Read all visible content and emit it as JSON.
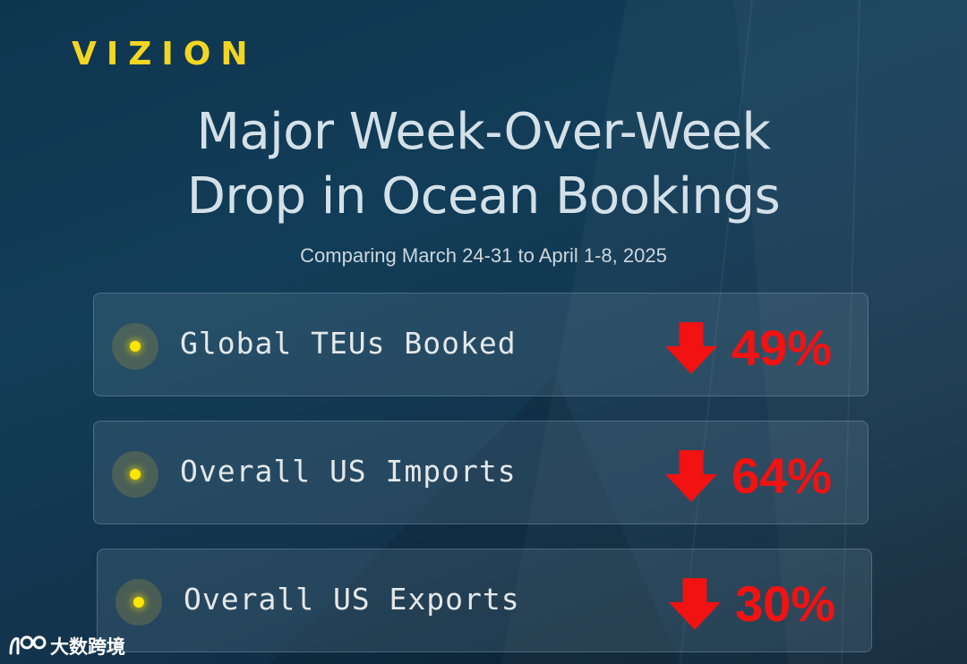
{
  "brand": {
    "logo_text": "VIZION",
    "accent_color": "#f2d621"
  },
  "header": {
    "title_line1": "Major Week-Over-Week",
    "title_line2": "Drop in Ocean Bookings",
    "subtitle": "Comparing March 24-31 to April 1-8, 2025"
  },
  "metrics": [
    {
      "label": "Global TEUs Booked",
      "change": "49%",
      "direction": "down",
      "icon": "down-arrow-icon"
    },
    {
      "label": "Overall US Imports",
      "change": "64%",
      "direction": "down",
      "icon": "down-arrow-icon"
    },
    {
      "label": "Overall US Exports",
      "change": "30%",
      "direction": "down",
      "icon": "down-arrow-icon"
    }
  ],
  "colors": {
    "decline": "#f21212",
    "bullet": "#ffe600"
  },
  "watermark": {
    "text": "大数跨境",
    "icon": "watermark-logo-icon"
  }
}
